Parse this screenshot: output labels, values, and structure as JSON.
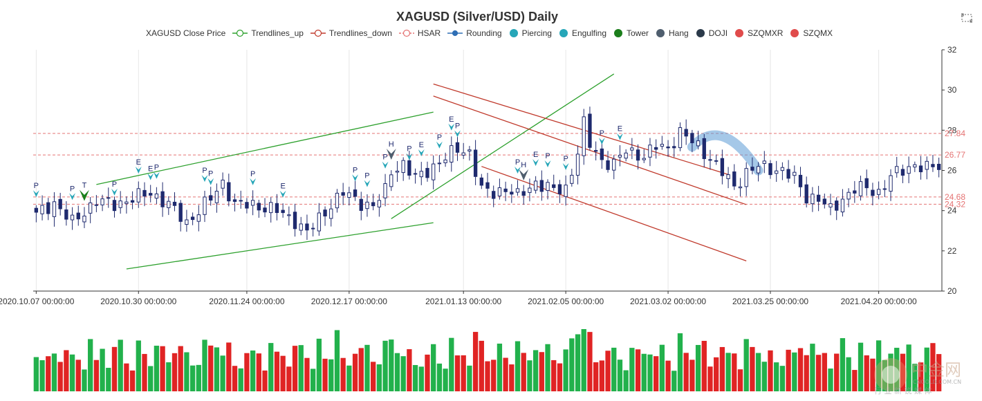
{
  "chart_data": {
    "type": "candlestick",
    "title": "XAGUSD (Silver/USD) Daily",
    "legend": [
      {
        "name": "XAGUSD Close Price",
        "symbol": "none",
        "color": "#333333"
      },
      {
        "name": "Trendlines_up",
        "symbol": "line-circle",
        "color": "#2ca02c"
      },
      {
        "name": "Trendlines_down",
        "symbol": "line-circle",
        "color": "#c0392b"
      },
      {
        "name": "HSAR",
        "symbol": "line-circle",
        "color": "#e57373"
      },
      {
        "name": "Rounding",
        "symbol": "line-dot",
        "color": "#2f6fb5"
      },
      {
        "name": "Piercing",
        "symbol": "dot",
        "color": "#26a6b8"
      },
      {
        "name": "Engulfing",
        "symbol": "dot",
        "color": "#26a6b8"
      },
      {
        "name": "Tower",
        "symbol": "dot",
        "color": "#1b7e1b"
      },
      {
        "name": "Hang",
        "symbol": "dot",
        "color": "#4f5e6e"
      },
      {
        "name": "DOJI",
        "symbol": "dot",
        "color": "#2b3a4a"
      },
      {
        "name": "SZQMXR",
        "symbol": "dot",
        "color": "#e04b4b"
      },
      {
        "name": "SZQMX",
        "symbol": "dot",
        "color": "#e04b4b"
      }
    ],
    "x_tick_labels": [
      "2020.10.07 00:00:00",
      "2020.10.30 00:00:00",
      "2020.11.24 00:00:00",
      "2020.12.17 00:00:00",
      "2021.01.13 00:00:00",
      "2021.02.05 00:00:00",
      "2021.03.02 00:00:00",
      "2021.03.25 00:00:00",
      "2021.04.20 00:00:00"
    ],
    "x_tick_index": [
      0,
      17,
      35,
      52,
      71,
      88,
      105,
      122,
      140
    ],
    "bar_count": 151,
    "ylim": [
      20,
      32
    ],
    "y_ticks": [
      20,
      22,
      24,
      26,
      28,
      30,
      32
    ],
    "hsar_levels": [
      {
        "value": 27.84,
        "label": "27.84"
      },
      {
        "value": 26.77,
        "label": "26.77"
      },
      {
        "value": 24.68,
        "label": "24.68"
      },
      {
        "value": 24.32,
        "label": "24.32"
      }
    ],
    "close_anchors": [
      [
        0,
        23.8
      ],
      [
        3,
        24.4
      ],
      [
        6,
        23.4
      ],
      [
        10,
        24.5
      ],
      [
        13,
        24.3
      ],
      [
        16,
        24.6
      ],
      [
        19,
        24.9
      ],
      [
        22,
        24.3
      ],
      [
        25,
        23.4
      ],
      [
        29,
        24.6
      ],
      [
        31,
        25.4
      ],
      [
        33,
        24.3
      ],
      [
        36,
        24.3
      ],
      [
        40,
        24.0
      ],
      [
        43,
        23.5
      ],
      [
        45,
        22.9
      ],
      [
        47,
        23.6
      ],
      [
        49,
        24.3
      ],
      [
        51,
        24.9
      ],
      [
        54,
        24.4
      ],
      [
        56,
        24.2
      ],
      [
        58,
        25.0
      ],
      [
        59,
        26.0
      ],
      [
        61,
        26.3
      ],
      [
        63,
        25.6
      ],
      [
        66,
        26.2
      ],
      [
        68,
        26.6
      ],
      [
        70,
        27.1
      ],
      [
        72,
        26.9
      ],
      [
        74,
        25.0
      ],
      [
        76,
        24.9
      ],
      [
        78,
        25.1
      ],
      [
        80,
        24.7
      ],
      [
        83,
        25.4
      ],
      [
        86,
        25.0
      ],
      [
        88,
        25.1
      ],
      [
        90,
        26.9
      ],
      [
        91,
        28.3
      ],
      [
        92,
        27.3
      ],
      [
        94,
        26.5
      ],
      [
        96,
        26.3
      ],
      [
        98,
        27.0
      ],
      [
        101,
        26.7
      ],
      [
        103,
        27.2
      ],
      [
        105,
        27.1
      ],
      [
        107,
        27.9
      ],
      [
        110,
        27.2
      ],
      [
        112,
        26.6
      ],
      [
        114,
        25.9
      ],
      [
        116,
        25.2
      ],
      [
        118,
        25.9
      ],
      [
        120,
        26.2
      ],
      [
        122,
        26.1
      ],
      [
        124,
        26.0
      ],
      [
        126,
        25.6
      ],
      [
        128,
        24.7
      ],
      [
        130,
        24.6
      ],
      [
        132,
        24.0
      ],
      [
        134,
        24.6
      ],
      [
        136,
        25.1
      ],
      [
        138,
        25.1
      ],
      [
        140,
        24.9
      ],
      [
        142,
        25.7
      ],
      [
        144,
        26.0
      ],
      [
        146,
        26.3
      ],
      [
        148,
        26.1
      ],
      [
        150,
        26.2
      ]
    ],
    "volume_pattern": [
      0.55,
      0.38,
      0.42,
      0.4,
      0.35,
      0.48,
      0.52,
      0.44,
      0.3,
      0.61,
      0.46,
      0.57,
      0.36,
      0.49,
      0.66,
      0.43,
      0.33,
      0.58,
      0.47,
      0.39,
      0.71,
      0.5,
      0.37,
      0.54,
      0.45,
      0.6,
      0.41,
      0.34,
      0.52,
      0.68
    ],
    "volume_up_color": "#22b14c",
    "volume_down_color": "#e02424",
    "trendlines_up": [
      {
        "from": [
          10,
          25.3
        ],
        "to": [
          66,
          28.9
        ]
      },
      {
        "from": [
          15,
          21.1
        ],
        "to": [
          66,
          23.4
        ]
      },
      {
        "from": [
          59,
          23.6
        ],
        "to": [
          96,
          30.8
        ]
      }
    ],
    "trendlines_down": [
      {
        "from": [
          66,
          30.3
        ],
        "to": [
          115,
          25.8
        ]
      },
      {
        "from": [
          66,
          29.7
        ],
        "to": [
          118,
          24.3
        ]
      },
      {
        "from": [
          74,
          26.2
        ],
        "to": [
          118,
          21.5
        ]
      }
    ],
    "rounding": {
      "from": 109,
      "peak": 114,
      "to": 120
    },
    "markers": [
      {
        "i": 0,
        "label": "P",
        "type": "piercing"
      },
      {
        "i": 6,
        "label": "P",
        "type": "piercing"
      },
      {
        "i": 8,
        "label": "T",
        "type": "tower"
      },
      {
        "i": 13,
        "label": "P",
        "type": "piercing"
      },
      {
        "i": 17,
        "label": "E",
        "type": "engulfing"
      },
      {
        "i": 19,
        "label": "E",
        "type": "engulfing"
      },
      {
        "i": 20,
        "label": "P",
        "type": "piercing"
      },
      {
        "i": 28,
        "label": "P",
        "type": "piercing"
      },
      {
        "i": 29,
        "label": "P",
        "type": "piercing"
      },
      {
        "i": 36,
        "label": "P",
        "type": "piercing"
      },
      {
        "i": 41,
        "label": "E",
        "type": "engulfing"
      },
      {
        "i": 53,
        "label": "P",
        "type": "piercing"
      },
      {
        "i": 55,
        "label": "P",
        "type": "piercing"
      },
      {
        "i": 58,
        "label": "P",
        "type": "piercing"
      },
      {
        "i": 59,
        "label": "H",
        "type": "hang"
      },
      {
        "i": 62,
        "label": "P",
        "type": "piercing"
      },
      {
        "i": 64,
        "label": "E",
        "type": "engulfing"
      },
      {
        "i": 67,
        "label": "P",
        "type": "piercing"
      },
      {
        "i": 69,
        "label": "E",
        "type": "engulfing"
      },
      {
        "i": 70,
        "label": "P",
        "type": "piercing"
      },
      {
        "i": 80,
        "label": "P",
        "type": "piercing"
      },
      {
        "i": 81,
        "label": "H",
        "type": "hang"
      },
      {
        "i": 83,
        "label": "E",
        "type": "engulfing"
      },
      {
        "i": 85,
        "label": "P",
        "type": "piercing"
      },
      {
        "i": 88,
        "label": "P",
        "type": "piercing"
      },
      {
        "i": 94,
        "label": "P",
        "type": "piercing"
      },
      {
        "i": 97,
        "label": "E",
        "type": "engulfing"
      }
    ],
    "colors": {
      "up": "#ffffff",
      "down": "#1f2a6e",
      "grid": "#e6e6e6",
      "hsar": "#e57373",
      "axis": "#333333",
      "trend_up": "#2ca02c",
      "trend_down": "#c0392b",
      "rounding": "#5b9bd5"
    }
  },
  "watermark": {
    "main": "中金网",
    "sub": "CNGOLD.COM.CN",
    "tagline": "行 业 新 锐 媒 体"
  }
}
